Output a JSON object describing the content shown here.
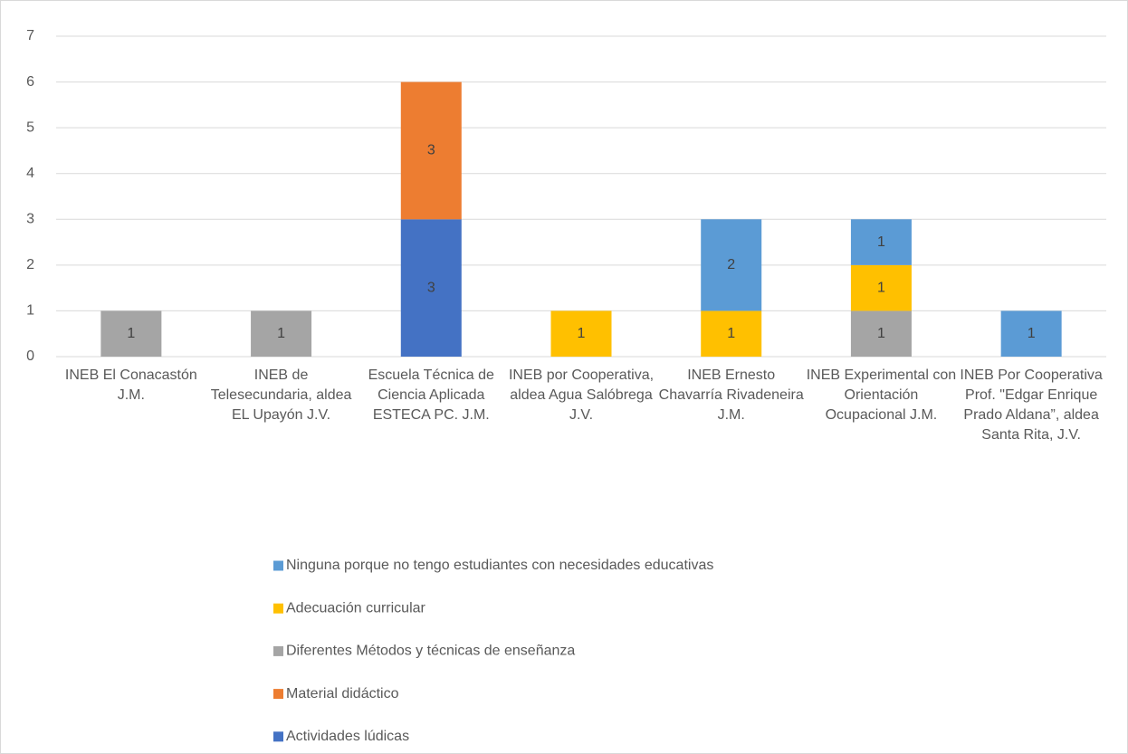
{
  "chart_data": {
    "type": "stacked_bar",
    "categories": [
      "INEB El Conacastón J.M.",
      "INEB de Telesecundaria, aldea EL Upayón J.V.",
      "Escuela Técnica de Ciencia Aplicada ESTECA PC. J.M.",
      "INEB por Cooperativa, aldea Agua Salóbrega J.V.",
      "INEB Ernesto Chavarría Rivadeneira J.M.",
      "INEB Experimental con Orientación Ocupacional J.M.",
      "INEB Por Cooperativa Prof. \"Edgar Enrique Prado Aldana”, aldea Santa Rita, J.V."
    ],
    "series": [
      {
        "name": "Actividades lúdicas",
        "color": "#4472c4",
        "values": [
          null,
          null,
          3,
          null,
          null,
          null,
          null
        ]
      },
      {
        "name": "Material didáctico",
        "color": "#ed7d31",
        "values": [
          null,
          null,
          3,
          null,
          null,
          null,
          null
        ]
      },
      {
        "name": "Diferentes Métodos y técnicas de enseñanza",
        "color": "#a5a5a5",
        "values": [
          1,
          1,
          null,
          null,
          null,
          1,
          null
        ]
      },
      {
        "name": "Adecuación curricular",
        "color": "#ffc000",
        "values": [
          null,
          null,
          null,
          1,
          1,
          1,
          null
        ]
      },
      {
        "name": "Ninguna porque no tengo estudiantes con necesidades educativas",
        "color": "#5b9bd5",
        "values": [
          null,
          null,
          null,
          null,
          2,
          1,
          1
        ]
      }
    ],
    "ylim": [
      0,
      7
    ],
    "yticks": [
      0,
      1,
      2,
      3,
      4,
      5,
      6,
      7
    ],
    "grid": true,
    "legend": "bottom"
  }
}
